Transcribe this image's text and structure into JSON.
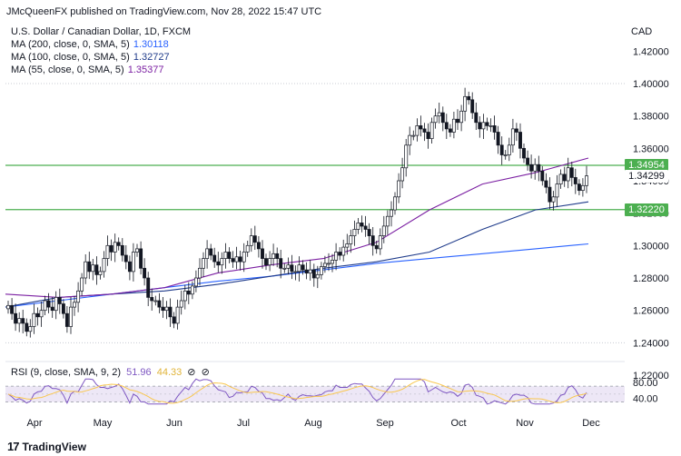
{
  "publisher": "JMcQueenFX published on TradingView.com, Nov 28, 2022 15:47 UTC",
  "symbol_title": "U.S. Dollar / Canadian Dollar, 1D, FXCM",
  "currency": "CAD",
  "brand": "TradingView",
  "ma_legend": [
    {
      "label": "MA (200, close, 0, SMA, 5)",
      "value": "1.30118",
      "color": "#2962ff"
    },
    {
      "label": "MA (100, close, 0, SMA, 5)",
      "value": "1.32727",
      "color": "#1e3a8a"
    },
    {
      "label": "MA (55, close, 0, SMA, 5)",
      "value": "1.35377",
      "color": "#7b1fa2"
    }
  ],
  "rsi_legend": {
    "label": "RSI (9, close, SMA, 9, 2)",
    "rsi_value": "51.96",
    "sma_value": "44.33",
    "rsi_color": "#7e57c2",
    "sma_color": "#f9c74f"
  },
  "price_tags": [
    {
      "value": "1.34954",
      "bg": "#4caf50",
      "fg": "#ffffff",
      "price": 1.34954
    },
    {
      "value": "1.34299",
      "bg": "#ffffff",
      "fg": "#131722",
      "price": 1.34299
    },
    {
      "value": "1.32220",
      "bg": "#4caf50",
      "fg": "#ffffff",
      "price": 1.3222
    }
  ],
  "chart_data": {
    "type": "candlestick",
    "y_axis_labels": [
      "1.42000",
      "1.40000",
      "1.38000",
      "1.36000",
      "1.34000",
      "1.32000",
      "1.30000",
      "1.28000",
      "1.26000",
      "1.24000",
      "1.22000"
    ],
    "ylim": [
      1.215,
      1.43
    ],
    "x_axis_labels": [
      "Apr",
      "May",
      "Jun",
      "Jul",
      "Aug",
      "Sep",
      "Oct",
      "Nov",
      "Dec"
    ],
    "horizontal_levels": [
      1.34954,
      1.3222
    ],
    "close_series": [
      1.263,
      1.258,
      1.252,
      1.255,
      1.252,
      1.247,
      1.25,
      1.258,
      1.256,
      1.26,
      1.266,
      1.262,
      1.26,
      1.268,
      1.264,
      1.258,
      1.25,
      1.262,
      1.265,
      1.272,
      1.28,
      1.29,
      1.284,
      1.288,
      1.282,
      1.284,
      1.292,
      1.3,
      1.296,
      1.302,
      1.3,
      1.294,
      1.29,
      1.284,
      1.296,
      1.298,
      1.286,
      1.28,
      1.268,
      1.266,
      1.266,
      1.262,
      1.26,
      1.262,
      1.256,
      1.252,
      1.262,
      1.266,
      1.272,
      1.27,
      1.275,
      1.28,
      1.286,
      1.292,
      1.298,
      1.294,
      1.29,
      1.288,
      1.292,
      1.296,
      1.292,
      1.29,
      1.293,
      1.29,
      1.296,
      1.3,
      1.306,
      1.302,
      1.298,
      1.292,
      1.288,
      1.292,
      1.295,
      1.292,
      1.286,
      1.286,
      1.288,
      1.284,
      1.284,
      1.288,
      1.285,
      1.283,
      1.285,
      1.28,
      1.282,
      1.287,
      1.289,
      1.289,
      1.291,
      1.296,
      1.294,
      1.299,
      1.301,
      1.306,
      1.31,
      1.314,
      1.312,
      1.31,
      1.306,
      1.3,
      1.298,
      1.306,
      1.312,
      1.318,
      1.322,
      1.33,
      1.34,
      1.348,
      1.362,
      1.368,
      1.368,
      1.374,
      1.372,
      1.37,
      1.366,
      1.376,
      1.38,
      1.382,
      1.376,
      1.372,
      1.37,
      1.378,
      1.376,
      1.383,
      1.392,
      1.39,
      1.382,
      1.376,
      1.372,
      1.376,
      1.374,
      1.374,
      1.37,
      1.362,
      1.356,
      1.356,
      1.362,
      1.372,
      1.37,
      1.36,
      1.354,
      1.35,
      1.346,
      1.35,
      1.346,
      1.34,
      1.336,
      1.327,
      1.33,
      1.338,
      1.344,
      1.34,
      1.348,
      1.342,
      1.338,
      1.334,
      1.337,
      1.343
    ],
    "series": [
      {
        "name": "MA (200, close, 0, SMA, 5)",
        "color": "#2962ff",
        "values": [
          1.262,
          1.266,
          1.27,
          1.274,
          1.278,
          1.281,
          1.285,
          1.289,
          1.292,
          1.295,
          1.298,
          1.301
        ]
      },
      {
        "name": "MA (100, close, 0, SMA, 5)",
        "color": "#1e3a8a",
        "values": [
          1.262,
          1.268,
          1.27,
          1.272,
          1.276,
          1.281,
          1.286,
          1.29,
          1.296,
          1.31,
          1.322,
          1.327
        ]
      },
      {
        "name": "MA (55, close, 0, SMA, 5)",
        "color": "#7b1fa2",
        "values": [
          1.27,
          1.268,
          1.27,
          1.274,
          1.283,
          1.288,
          1.292,
          1.302,
          1.322,
          1.338,
          1.345,
          1.354
        ]
      }
    ],
    "rsi": {
      "axis_labels": [
        "80.00",
        "40.00"
      ],
      "ylim": [
        20,
        100
      ],
      "bands": [
        70,
        30
      ]
    }
  }
}
